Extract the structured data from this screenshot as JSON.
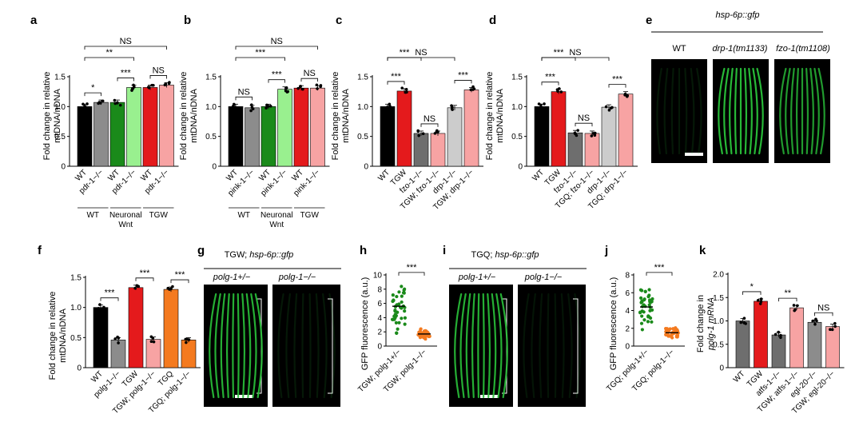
{
  "ylabel_mt": [
    "Fold change in relative",
    "mtDNA/nDNA"
  ],
  "ylabel_gfp": "GFP fluorescence (a.u.)",
  "ylabel_polg": [
    "Fold change in",
    "polg-1 mRNA"
  ],
  "colors": {
    "black": "#000000",
    "gray": "#8c8c8c",
    "darkgreen": "#1a8a1a",
    "lightgreen": "#99f08f",
    "red": "#e41a1c",
    "pink": "#f7a3a3",
    "darkgray": "#6e6e6e",
    "lightgray": "#cccccc",
    "orange": "#f47a1f",
    "green": "#1a8a1a",
    "gfp": "#29c23a"
  },
  "chart_data": [
    {
      "panel": "a",
      "type": "bar",
      "categories": [
        "WT",
        "pdr-1−/−",
        "WT",
        "pdr-1−/−",
        "WT",
        "pdr-1−/−"
      ],
      "values": [
        1.0,
        1.07,
        1.07,
        1.32,
        1.32,
        1.36
      ],
      "colors": [
        "black",
        "gray",
        "darkgreen",
        "lightgreen",
        "red",
        "pink"
      ],
      "ylim": [
        0,
        1.5
      ],
      "yticks": [
        "0",
        "0.5",
        "1.0",
        "1.5"
      ],
      "groups": [
        "WT",
        "Neuronal Wnt",
        "TGW"
      ],
      "significance": [
        {
          "from": 0,
          "to": 1,
          "label": "*"
        },
        {
          "from": 2,
          "to": 3,
          "label": "***"
        },
        {
          "from": 4,
          "to": 5,
          "label": "NS"
        },
        {
          "from": 0,
          "to": 3,
          "label": "**"
        },
        {
          "from": 0,
          "to": 5,
          "label": "NS"
        }
      ]
    },
    {
      "panel": "b",
      "type": "bar",
      "categories": [
        "WT",
        "pink-1−/−",
        "WT",
        "pink-1−/−",
        "WT",
        "pink-1−/−"
      ],
      "values": [
        1.0,
        0.98,
        1.0,
        1.29,
        1.31,
        1.31
      ],
      "colors": [
        "black",
        "gray",
        "darkgreen",
        "lightgreen",
        "red",
        "pink"
      ],
      "ylim": [
        0,
        1.5
      ],
      "yticks": [
        "0",
        "0.5",
        "1.0",
        "1.5"
      ],
      "groups": [
        "WT",
        "Neuronal Wnt",
        "TGW"
      ],
      "significance": [
        {
          "from": 0,
          "to": 1,
          "label": "NS"
        },
        {
          "from": 2,
          "to": 3,
          "label": "***"
        },
        {
          "from": 4,
          "to": 5,
          "label": "NS"
        },
        {
          "from": 0,
          "to": 3,
          "label": "***"
        },
        {
          "from": 0,
          "to": 5,
          "label": "NS"
        }
      ]
    },
    {
      "panel": "c",
      "type": "bar",
      "categories": [
        "WT",
        "TGW",
        "fzo-1−/−",
        "TGW; fzo-1−/−",
        "drp-1−/−",
        "TGW; drp-1−/−"
      ],
      "values": [
        1.0,
        1.26,
        0.55,
        0.55,
        0.98,
        1.28
      ],
      "colors": [
        "black",
        "red",
        "darkgray",
        "pink",
        "lightgray",
        "pink"
      ],
      "ylim": [
        0,
        1.5
      ],
      "yticks": [
        "0",
        "0.5",
        "1.0",
        "1.5"
      ],
      "significance": [
        {
          "from": 0,
          "to": 1,
          "label": "***"
        },
        {
          "from": 2,
          "to": 3,
          "label": "NS"
        },
        {
          "from": 4,
          "to": 5,
          "label": "***"
        },
        {
          "from": 0,
          "to": 2,
          "label": "***"
        },
        {
          "from": 0,
          "to": 4,
          "label": "NS"
        }
      ]
    },
    {
      "panel": "d",
      "type": "bar",
      "categories": [
        "WT",
        "TGW",
        "fzo-1−/−",
        "TGQ; fzo-1−/−",
        "drp-1−/−",
        "TGQ; drp-1−/−"
      ],
      "values": [
        1.0,
        1.25,
        0.56,
        0.55,
        0.99,
        1.21
      ],
      "colors": [
        "black",
        "red",
        "darkgray",
        "pink",
        "lightgray",
        "pink"
      ],
      "ylim": [
        0,
        1.5
      ],
      "yticks": [
        "0",
        "0.5",
        "1.0",
        "1.5"
      ],
      "significance": [
        {
          "from": 0,
          "to": 1,
          "label": "***"
        },
        {
          "from": 2,
          "to": 3,
          "label": "NS"
        },
        {
          "from": 4,
          "to": 5,
          "label": "***"
        },
        {
          "from": 0,
          "to": 2,
          "label": "***"
        },
        {
          "from": 0,
          "to": 4,
          "label": "NS"
        }
      ]
    },
    {
      "panel": "f",
      "type": "bar",
      "categories": [
        "WT",
        "polg-1−/−",
        "TGW",
        "TGW; polg-1−/−",
        "TGQ",
        "TGQ; polg-1−/−"
      ],
      "values": [
        1.0,
        0.46,
        1.33,
        0.47,
        1.3,
        0.46
      ],
      "colors": [
        "black",
        "gray",
        "red",
        "pink",
        "orange",
        "orange"
      ],
      "ylim": [
        0,
        1.5
      ],
      "yticks": [
        "0",
        "0.5",
        "1.0",
        "1.5"
      ],
      "significance": [
        {
          "from": 0,
          "to": 1,
          "label": "***"
        },
        {
          "from": 2,
          "to": 3,
          "label": "***"
        },
        {
          "from": 4,
          "to": 5,
          "label": "***"
        }
      ]
    },
    {
      "panel": "h",
      "type": "scatter",
      "categories": [
        "TGW; polg-1+/−",
        "TGW; polg-1−/−"
      ],
      "means": [
        5.6,
        1.7
      ],
      "colors": [
        "green",
        "orange"
      ],
      "ylim": [
        0,
        10
      ],
      "yticks": [
        "0",
        "2",
        "4",
        "6",
        "8",
        "10"
      ],
      "significance": [
        {
          "from": 0,
          "to": 1,
          "label": "***"
        }
      ]
    },
    {
      "panel": "j",
      "type": "scatter",
      "categories": [
        "TGQ; polg-1+/−",
        "TGQ; polg-1−/−"
      ],
      "means": [
        4.4,
        1.5
      ],
      "colors": [
        "green",
        "orange"
      ],
      "ylim": [
        0,
        8
      ],
      "yticks": [
        "0",
        "2",
        "4",
        "6",
        "8"
      ],
      "significance": [
        {
          "from": 0,
          "to": 1,
          "label": "***"
        }
      ]
    },
    {
      "panel": "k",
      "type": "bar",
      "categories": [
        "WT",
        "TGW",
        "atfs-1−/−",
        "TGW; atfs-1−/−",
        "egl-20−/−",
        "TGW; egl-20−/−"
      ],
      "values": [
        1.0,
        1.42,
        0.7,
        1.28,
        0.97,
        0.88
      ],
      "colors": [
        "darkgray",
        "red",
        "darkgray",
        "pink",
        "gray",
        "pink"
      ],
      "ylim": [
        0,
        2.0
      ],
      "yticks": [
        "0",
        "0.5",
        "1.0",
        "1.5",
        "2.0"
      ],
      "significance": [
        {
          "from": 0,
          "to": 1,
          "label": "*"
        },
        {
          "from": 2,
          "to": 3,
          "label": "**"
        },
        {
          "from": 4,
          "to": 5,
          "label": "NS"
        }
      ]
    }
  ],
  "panel_e": {
    "letter": "e",
    "title": "hsp-6p::gfp",
    "labels": [
      "WT",
      "drp-1(tm1133)",
      "fzo-1(tm1108)"
    ]
  },
  "panel_g": {
    "letter": "g",
    "title_strain": "TGW;",
    "title_reporter": "hsp-6p::gfp",
    "labels": [
      "polg-1+/−",
      "polg-1−/−"
    ]
  },
  "panel_i": {
    "letter": "i",
    "title_strain": "TGQ;",
    "title_reporter": "hsp-6p::gfp",
    "labels": [
      "polg-1+/−",
      "polg-1−/−"
    ]
  }
}
